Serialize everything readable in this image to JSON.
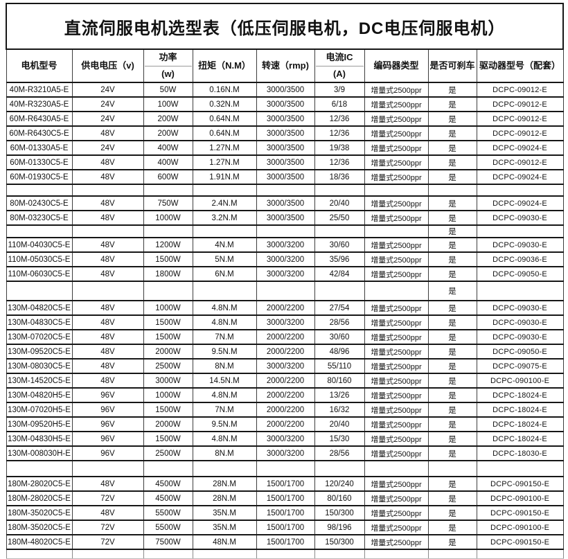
{
  "title": "直流伺服电机选型表（低压伺服电机，DC电压伺服电机）",
  "columns": [
    {
      "id": "model",
      "label": "电机型号"
    },
    {
      "id": "voltage",
      "label": "供电电压（v)"
    },
    {
      "id": "power",
      "label": "功率",
      "label2": "(w)",
      "split": true
    },
    {
      "id": "torque",
      "label": "扭矩（N.M）"
    },
    {
      "id": "speed",
      "label": "转速（rmp)"
    },
    {
      "id": "current",
      "label": "电流IC",
      "label2": "(A)",
      "split": true
    },
    {
      "id": "encoder",
      "label": "编码器类型"
    },
    {
      "id": "brake",
      "label": "是否可刹车"
    },
    {
      "id": "driver",
      "label": "驱动器型号（配套）"
    }
  ],
  "rows": [
    {
      "type": "data",
      "cells": [
        "40M-R3210A5-E",
        "24V",
        "50W",
        "0.16N.M",
        "3000/3500",
        "3/9",
        "增量式2500ppr",
        "是",
        "DCPC-09012-E"
      ]
    },
    {
      "type": "data",
      "cells": [
        "40M-R3230A5-E",
        "24V",
        "100W",
        "0.32N.M",
        "3000/3500",
        "6/18",
        "增量式2500ppr",
        "是",
        "DCPC-09012-E"
      ]
    },
    {
      "type": "data",
      "cells": [
        "60M-R6430A5-E",
        "24V",
        "200W",
        "0.64N.M",
        "3000/3500",
        "12/36",
        "增量式2500ppr",
        "是",
        "DCPC-09012-E"
      ]
    },
    {
      "type": "data",
      "cells": [
        "60M-R6430C5-E",
        "48V",
        "200W",
        "0.64N.M",
        "3000/3500",
        "12/36",
        "增量式2500ppr",
        "是",
        "DCPC-09012-E"
      ]
    },
    {
      "type": "data",
      "cells": [
        "60M-01330A5-E",
        "24V",
        "400W",
        "1.27N.M",
        "3000/3500",
        "19/38",
        "增量式2500ppr",
        "是",
        "DCPC-09024-E"
      ]
    },
    {
      "type": "data",
      "cells": [
        "60M-01330C5-E",
        "48V",
        "400W",
        "1.27N.M",
        "3000/3500",
        "12/36",
        "增量式2500ppr",
        "是",
        "DCPC-09012-E"
      ]
    },
    {
      "type": "data",
      "cells": [
        "60M-01930C5-E",
        "48V",
        "600W",
        "1.91N.M",
        "3000/3500",
        "18/36",
        "增量式2500ppr",
        "是",
        "DCPC-09024-E"
      ]
    },
    {
      "type": "gap-empty",
      "cells": [
        "",
        "",
        "",
        "",
        "",
        "",
        "",
        "",
        ""
      ]
    },
    {
      "type": "data",
      "cells": [
        "80M-02430C5-E",
        "48V",
        "750W",
        "2.4N.M",
        "3000/3500",
        "20/40",
        "增量式2500ppr",
        "是",
        "DCPC-09024-E"
      ]
    },
    {
      "type": "data",
      "cells": [
        "80M-03230C5-E",
        "48V",
        "1000W",
        "3.2N.M",
        "3000/3500",
        "25/50",
        "增量式2500ppr",
        "是",
        "DCPC-09030-E"
      ]
    },
    {
      "type": "gap-brake",
      "cells": [
        "",
        "",
        "",
        "",
        "",
        "",
        "",
        "是",
        ""
      ]
    },
    {
      "type": "data",
      "cells": [
        "110M-04030C5-E",
        "48V",
        "1200W",
        "4N.M",
        "3000/3200",
        "30/60",
        "增量式2500ppr",
        "是",
        "DCPC-09030-E"
      ]
    },
    {
      "type": "data",
      "cells": [
        "110M-05030C5-E",
        "48V",
        "1500W",
        "5N.M",
        "3000/3200",
        "35/96",
        "增量式2500ppr",
        "是",
        "DCPC-09036-E"
      ]
    },
    {
      "type": "data",
      "cells": [
        "110M-06030C5-E",
        "48V",
        "1800W",
        "6N.M",
        "3000/3200",
        "42/84",
        "增量式2500ppr",
        "是",
        "DCPC-09050-E"
      ]
    },
    {
      "type": "gap-brake-tall",
      "cells": [
        "",
        "",
        "",
        "",
        "",
        "",
        "",
        "是",
        ""
      ]
    },
    {
      "type": "data",
      "cells": [
        "130M-04820C5-E",
        "48V",
        "1000W",
        "4.8N.M",
        "2000/2200",
        "27/54",
        "增量式2500ppr",
        "是",
        "DCPC-09030-E"
      ]
    },
    {
      "type": "data",
      "cells": [
        "130M-04830C5-E",
        "48V",
        "1500W",
        "4.8N.M",
        "3000/3200",
        "28/56",
        "增量式2500ppr",
        "是",
        "DCPC-09030-E"
      ]
    },
    {
      "type": "data",
      "cells": [
        "130M-07020C5-E",
        "48V",
        "1500W",
        "7N.M",
        "2000/2200",
        "30/60",
        "增量式2500ppr",
        "是",
        "DCPC-09030-E"
      ]
    },
    {
      "type": "data",
      "cells": [
        "130M-09520C5-E",
        "48V",
        "2000W",
        "9.5N.M",
        "2000/2200",
        "48/96",
        "增量式2500ppr",
        "是",
        "DCPC-09050-E"
      ]
    },
    {
      "type": "data",
      "cells": [
        "130M-08030C5-E",
        "48V",
        "2500W",
        "8N.M",
        "3000/3200",
        "55/110",
        "增量式2500ppr",
        "是",
        "DCPC-09075-E"
      ]
    },
    {
      "type": "data",
      "cells": [
        "130M-14520C5-E",
        "48V",
        "3000W",
        "14.5N.M",
        "2000/2200",
        "80/160",
        "增量式2500ppr",
        "是",
        "DCPC-090100-E"
      ]
    },
    {
      "type": "data",
      "cells": [
        "130M-04820H5-E",
        "96V",
        "1000W",
        "4.8N.M",
        "2000/2200",
        "13/26",
        "增量式2500ppr",
        "是",
        "DCPC-18024-E"
      ]
    },
    {
      "type": "data",
      "cells": [
        "130M-07020H5-E",
        "96V",
        "1500W",
        "7N.M",
        "2000/2200",
        "16/32",
        "增量式2500ppr",
        "是",
        "DCPC-18024-E"
      ]
    },
    {
      "type": "data",
      "cells": [
        "130M-09520H5-E",
        "96V",
        "2000W",
        "9.5N.M",
        "2000/2200",
        "20/40",
        "增量式2500ppr",
        "是",
        "DCPC-18024-E"
      ]
    },
    {
      "type": "data",
      "cells": [
        "130M-04830H5-E",
        "96V",
        "1500W",
        "4.8N.M",
        "3000/3200",
        "15/30",
        "增量式2500ppr",
        "是",
        "DCPC-18024-E"
      ]
    },
    {
      "type": "data",
      "cells": [
        "130M-008030H-E",
        "96V",
        "2500W",
        "8N.M",
        "3000/3200",
        "28/56",
        "增量式2500ppr",
        "是",
        "DCPC-18030-E"
      ]
    },
    {
      "type": "gap-empty-tall",
      "cells": [
        "",
        "",
        "",
        "",
        "",
        "",
        "",
        "",
        ""
      ]
    },
    {
      "type": "data",
      "cells": [
        "180M-28020C5-E",
        "48V",
        "4500W",
        "28N.M",
        "1500/1700",
        "120/240",
        "增量式2500ppr",
        "是",
        "DCPC-090150-E"
      ]
    },
    {
      "type": "data",
      "cells": [
        "180M-28020C5-E",
        "72V",
        "4500W",
        "28N.M",
        "1500/1700",
        "80/160",
        "增量式2500ppr",
        "是",
        "DCPC-090100-E"
      ]
    },
    {
      "type": "data",
      "cells": [
        "180M-35020C5-E",
        "48V",
        "5500W",
        "35N.M",
        "1500/1700",
        "150/300",
        "增量式2500ppr",
        "是",
        "DCPC-090150-E"
      ]
    },
    {
      "type": "data",
      "cells": [
        "180M-35020C5-E",
        "72V",
        "5500W",
        "35N.M",
        "1500/1700",
        "98/196",
        "增量式2500ppr",
        "是",
        "DCPC-090100-E"
      ]
    },
    {
      "type": "data",
      "cells": [
        "180M-48020C5-E",
        "72V",
        "7500W",
        "48N.M",
        "1500/1700",
        "150/300",
        "增量式2500ppr",
        "是",
        "DCPC-090150-E"
      ]
    },
    {
      "type": "gap-bottom",
      "cells": [
        "",
        "",
        "",
        "",
        "",
        "",
        "",
        "",
        ""
      ]
    }
  ]
}
